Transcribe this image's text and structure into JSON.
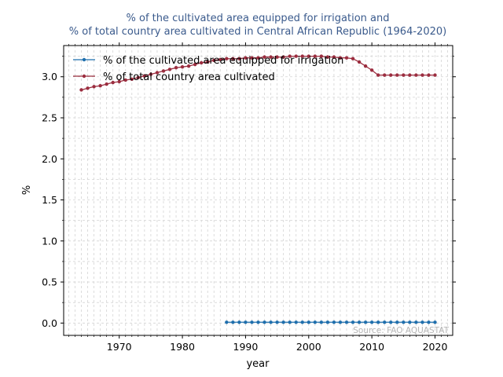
{
  "chart_data": {
    "type": "line",
    "title_lines": [
      "% of the cultivated area equipped for irrigation and",
      "% of total country area cultivated in Central African Republic (1964-2020)"
    ],
    "xlabel": "year",
    "ylabel": "%",
    "xlim": [
      1961.2,
      2022.8
    ],
    "ylim": [
      -0.15,
      3.38
    ],
    "xticks": [
      1970,
      1980,
      1990,
      2000,
      2010,
      2020
    ],
    "yticks": [
      0.0,
      0.5,
      1.0,
      1.5,
      2.0,
      2.5,
      3.0
    ],
    "ytick_labels": [
      "0.0",
      "0.5",
      "1.0",
      "1.5",
      "2.0",
      "2.5",
      "3.0"
    ],
    "grid": true,
    "legend_position": "top-left",
    "source_note": "Source: FAO AQUASTAT",
    "series": [
      {
        "name": "% of the cultivated area equipped for irrigation",
        "color": "#1f6fad",
        "x": [
          1987,
          1988,
          1989,
          1990,
          1991,
          1992,
          1993,
          1994,
          1995,
          1996,
          1997,
          1998,
          1999,
          2000,
          2001,
          2002,
          2003,
          2004,
          2005,
          2006,
          2007,
          2008,
          2009,
          2010,
          2011,
          2012,
          2013,
          2014,
          2015,
          2016,
          2017,
          2018,
          2019,
          2020
        ],
        "y": [
          0.01,
          0.01,
          0.01,
          0.01,
          0.01,
          0.01,
          0.01,
          0.01,
          0.01,
          0.01,
          0.01,
          0.01,
          0.01,
          0.01,
          0.01,
          0.01,
          0.01,
          0.01,
          0.01,
          0.01,
          0.01,
          0.01,
          0.01,
          0.01,
          0.01,
          0.01,
          0.01,
          0.01,
          0.01,
          0.01,
          0.01,
          0.01,
          0.01,
          0.01
        ]
      },
      {
        "name": "% of total country area cultivated",
        "color": "#9b2d3f",
        "x": [
          1964,
          1965,
          1966,
          1967,
          1968,
          1969,
          1970,
          1971,
          1972,
          1973,
          1974,
          1975,
          1976,
          1977,
          1978,
          1979,
          1980,
          1981,
          1982,
          1983,
          1984,
          1985,
          1986,
          1987,
          1988,
          1989,
          1990,
          1991,
          1992,
          1993,
          1994,
          1995,
          1996,
          1997,
          1998,
          1999,
          2000,
          2001,
          2002,
          2003,
          2004,
          2005,
          2006,
          2007,
          2008,
          2009,
          2010,
          2011,
          2012,
          2013,
          2014,
          2015,
          2016,
          2017,
          2018,
          2019,
          2020
        ],
        "y": [
          2.84,
          2.86,
          2.88,
          2.89,
          2.91,
          2.93,
          2.94,
          2.96,
          2.97,
          2.99,
          3.01,
          3.03,
          3.05,
          3.07,
          3.09,
          3.11,
          3.12,
          3.13,
          3.15,
          3.17,
          3.18,
          3.2,
          3.21,
          3.22,
          3.22,
          3.22,
          3.23,
          3.23,
          3.23,
          3.24,
          3.24,
          3.24,
          3.24,
          3.25,
          3.25,
          3.25,
          3.25,
          3.25,
          3.25,
          3.24,
          3.24,
          3.23,
          3.23,
          3.22,
          3.18,
          3.13,
          3.08,
          3.02,
          3.02,
          3.02,
          3.02,
          3.02,
          3.02,
          3.02,
          3.02,
          3.02,
          3.02
        ]
      }
    ]
  }
}
